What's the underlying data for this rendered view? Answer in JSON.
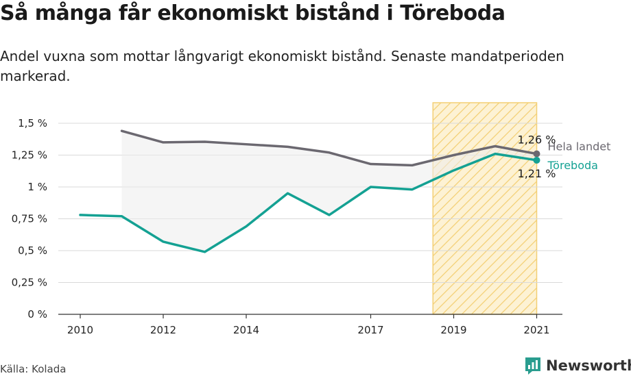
{
  "title": "Så många får ekonomiskt bistånd i Töreboda",
  "subtitle": "Andel vuxna som mottar långvarigt ekonomiskt bistånd. Senaste mandatperioden markerad.",
  "source": "Källa: Kolada",
  "brand": {
    "name": "Newsworthy",
    "color": "#2a9d8f"
  },
  "chart_data": {
    "type": "line",
    "x_ticks": [
      "2010",
      "2012",
      "2014",
      "2017",
      "2019",
      "2021"
    ],
    "y_ticks": [
      "0 %",
      "0,25 %",
      "0,5 %",
      "0,75 %",
      "1 %",
      "1,25 %",
      "1,5 %"
    ],
    "ylim": [
      0,
      1.6
    ],
    "xlim": [
      2009.5,
      2021.5
    ],
    "highlight_period": [
      2018.5,
      2021
    ],
    "series": [
      {
        "name": "Hela landet",
        "color": "#6b6870",
        "x": [
          2011,
          2012,
          2013,
          2014,
          2015,
          2016,
          2017,
          2018,
          2019,
          2020,
          2021
        ],
        "values": [
          1.44,
          1.35,
          1.355,
          1.335,
          1.315,
          1.27,
          1.18,
          1.17,
          1.25,
          1.32,
          1.26
        ],
        "end_label": "1,26 %"
      },
      {
        "name": "Töreboda",
        "color": "#14a193",
        "x": [
          2010,
          2011,
          2012,
          2013,
          2014,
          2015,
          2016,
          2017,
          2018,
          2019,
          2020,
          2021
        ],
        "values": [
          0.78,
          0.77,
          0.57,
          0.49,
          0.69,
          0.95,
          0.78,
          1.0,
          0.98,
          1.13,
          1.26,
          1.21
        ],
        "end_label": "1,21 %"
      }
    ]
  }
}
